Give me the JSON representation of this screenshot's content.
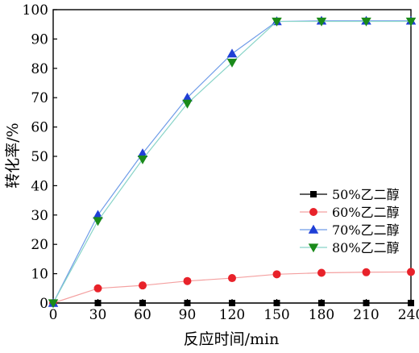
{
  "chart_data": {
    "type": "line",
    "title": "",
    "xlabel": "反应时间/min",
    "ylabel": "转化率/%",
    "x": [
      0,
      30,
      60,
      90,
      120,
      150,
      180,
      210,
      240
    ],
    "xlim": [
      0,
      240
    ],
    "ylim": [
      0,
      100
    ],
    "xticks": [
      "0",
      "30",
      "60",
      "90",
      "120",
      "150",
      "180",
      "210",
      "240"
    ],
    "yticks": [
      "0",
      "10",
      "20",
      "30",
      "40",
      "50",
      "60",
      "70",
      "80",
      "90",
      "100"
    ],
    "grid": false,
    "legend_position": "bottom-right",
    "series": [
      {
        "name": "50%乙二醇",
        "color": "#000000",
        "marker": "square",
        "values": [
          0,
          0,
          0,
          0,
          0,
          0,
          0,
          0,
          0
        ]
      },
      {
        "name": "60%乙二醇",
        "color": "#e8222a",
        "marker": "circle",
        "values": [
          0,
          5,
          6,
          7.5,
          8.5,
          9.8,
          10.3,
          10.5,
          10.6
        ]
      },
      {
        "name": "70%乙二醇",
        "color": "#1f3fd6",
        "marker": "triangle-up",
        "values": [
          0,
          30,
          51,
          70,
          85,
          96,
          96.2,
          96.2,
          96.2
        ]
      },
      {
        "name": "80%乙二醇",
        "color": "#1a8a1a",
        "marker": "triangle-down",
        "values": [
          0,
          28,
          49,
          68,
          82,
          96,
          96,
          96,
          96
        ]
      }
    ]
  }
}
